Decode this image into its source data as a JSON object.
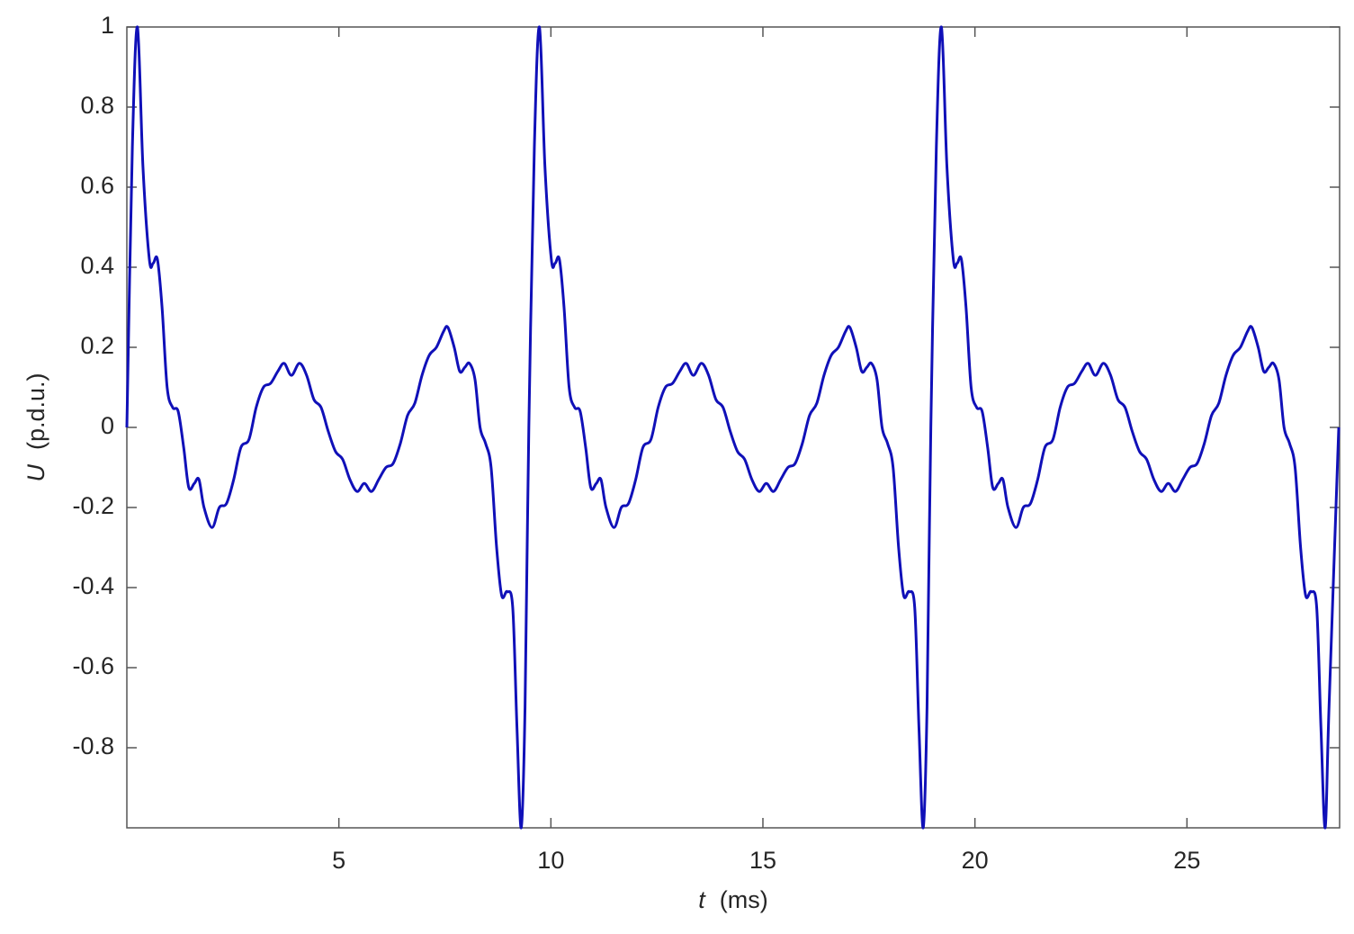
{
  "chart_data": {
    "type": "line",
    "xlabel": {
      "symbol": "t",
      "unit": "(ms)"
    },
    "ylabel": {
      "symbol": "U",
      "unit": "(p.d.u.)"
    },
    "color": "#1010b8",
    "xlim": [
      0,
      28.6
    ],
    "ylim": [
      -1,
      1
    ],
    "xticks": [
      5,
      10,
      15,
      20,
      25
    ],
    "yticks": [
      -0.8,
      -0.6,
      -0.4,
      -0.2,
      0,
      0.2,
      0.4,
      0.6,
      0.8,
      1
    ],
    "x": [
      0,
      0.13,
      0.25,
      0.38,
      0.53,
      0.62,
      0.72,
      0.83,
      0.95,
      1.08,
      1.21,
      1.34,
      1.46,
      1.59,
      1.7,
      1.82,
      2.01,
      2.18,
      2.35,
      2.52,
      2.69,
      2.88,
      3.05,
      3.22,
      3.39,
      3.56,
      3.71,
      3.88,
      4.07,
      4.24,
      4.41,
      4.58,
      4.75,
      4.92,
      5.09,
      5.26,
      5.43,
      5.6,
      5.77,
      5.94,
      6.11,
      6.28,
      6.45,
      6.62,
      6.79,
      6.96,
      7.13,
      7.3,
      7.47,
      7.57,
      7.72,
      7.85,
      7.97,
      8.08,
      8.21,
      8.33,
      8.46,
      8.59,
      8.72,
      8.84,
      8.97,
      9.1,
      9.2,
      9.3,
      9.39,
      9.48,
      9.61,
      9.73,
      9.86,
      10.01,
      10.1,
      10.2,
      10.31,
      10.43,
      10.56,
      10.69,
      10.82,
      10.94,
      11.07,
      11.18,
      11.3,
      11.49,
      11.66,
      11.83,
      12.0,
      12.17,
      12.36,
      12.53,
      12.7,
      12.87,
      13.04,
      13.19,
      13.36,
      13.55,
      13.72,
      13.89,
      14.06,
      14.23,
      14.4,
      14.57,
      14.74,
      14.91,
      15.08,
      15.25,
      15.42,
      15.59,
      15.76,
      15.93,
      16.1,
      16.27,
      16.44,
      16.61,
      16.78,
      16.95,
      17.05,
      17.2,
      17.33,
      17.45,
      17.56,
      17.69,
      17.81,
      17.94,
      18.07,
      18.2,
      18.32,
      18.45,
      18.58,
      18.68,
      18.78,
      18.87,
      18.96,
      19.09,
      19.21,
      19.34,
      19.49,
      19.58,
      19.68,
      19.79,
      19.91,
      20.04,
      20.17,
      20.3,
      20.42,
      20.55,
      20.66,
      20.78,
      20.97,
      21.14,
      21.31,
      21.48,
      21.65,
      21.84,
      22.01,
      22.18,
      22.35,
      22.52,
      22.67,
      22.84,
      23.03,
      23.2,
      23.37,
      23.54,
      23.71,
      23.88,
      24.05,
      24.22,
      24.39,
      24.56,
      24.73,
      24.9,
      25.07,
      25.24,
      25.41,
      25.58,
      25.75,
      25.92,
      26.09,
      26.26,
      26.43,
      26.53,
      26.68,
      26.81,
      26.93,
      27.04,
      27.17,
      27.29,
      27.42,
      27.55,
      27.68,
      27.8,
      27.93,
      28.06,
      28.16,
      28.26,
      28.35,
      28.58
    ],
    "values": [
      0,
      0.7,
      1.0,
      0.65,
      0.42,
      0.41,
      0.42,
      0.3,
      0.1,
      0.05,
      0.04,
      -0.05,
      -0.15,
      -0.14,
      -0.13,
      -0.2,
      -0.25,
      -0.2,
      -0.19,
      -0.13,
      -0.05,
      -0.03,
      0.05,
      0.1,
      0.11,
      0.14,
      0.16,
      0.13,
      0.16,
      0.13,
      0.07,
      0.05,
      -0.01,
      -0.06,
      -0.08,
      -0.13,
      -0.16,
      -0.14,
      -0.16,
      -0.13,
      -0.1,
      -0.09,
      -0.04,
      0.03,
      0.06,
      0.13,
      0.18,
      0.2,
      0.24,
      0.25,
      0.2,
      0.14,
      0.15,
      0.16,
      0.12,
      0.0,
      -0.04,
      -0.1,
      -0.3,
      -0.42,
      -0.41,
      -0.45,
      -0.75,
      -1.0,
      -0.7,
      0,
      0.7,
      1.0,
      0.65,
      0.42,
      0.41,
      0.42,
      0.3,
      0.1,
      0.05,
      0.04,
      -0.05,
      -0.15,
      -0.14,
      -0.13,
      -0.2,
      -0.25,
      -0.2,
      -0.19,
      -0.13,
      -0.05,
      -0.03,
      0.05,
      0.1,
      0.11,
      0.14,
      0.16,
      0.13,
      0.16,
      0.13,
      0.07,
      0.05,
      -0.01,
      -0.06,
      -0.08,
      -0.13,
      -0.16,
      -0.14,
      -0.16,
      -0.13,
      -0.1,
      -0.09,
      -0.04,
      0.03,
      0.06,
      0.13,
      0.18,
      0.2,
      0.24,
      0.25,
      0.2,
      0.14,
      0.15,
      0.16,
      0.12,
      0.0,
      -0.04,
      -0.1,
      -0.3,
      -0.42,
      -0.41,
      -0.45,
      -0.75,
      -1.0,
      -0.7,
      0,
      0.7,
      1.0,
      0.65,
      0.42,
      0.41,
      0.42,
      0.3,
      0.1,
      0.05,
      0.04,
      -0.05,
      -0.15,
      -0.14,
      -0.13,
      -0.2,
      -0.25,
      -0.2,
      -0.19,
      -0.13,
      -0.05,
      -0.03,
      0.05,
      0.1,
      0.11,
      0.14,
      0.16,
      0.13,
      0.16,
      0.13,
      0.07,
      0.05,
      -0.01,
      -0.06,
      -0.08,
      -0.13,
      -0.16,
      -0.14,
      -0.16,
      -0.13,
      -0.1,
      -0.09,
      -0.04,
      0.03,
      0.06,
      0.13,
      0.18,
      0.2,
      0.24,
      0.25,
      0.2,
      0.14,
      0.15,
      0.16,
      0.12,
      0.0,
      -0.04,
      -0.1,
      -0.3,
      -0.42,
      -0.41,
      -0.45,
      -0.75,
      -1.0,
      -0.7,
      0
    ]
  }
}
